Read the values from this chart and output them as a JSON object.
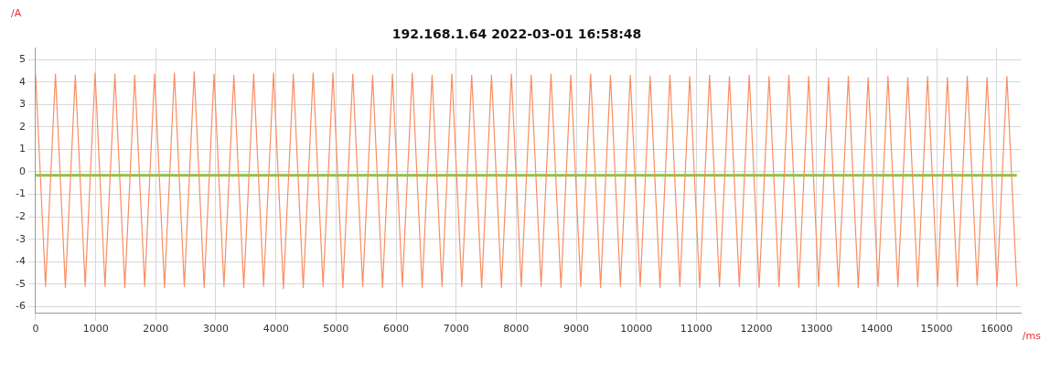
{
  "chart_data": {
    "type": "line",
    "title": "192.168.1.64 2022-03-01 16:58:48",
    "xlabel": "/ms",
    "ylabel": "/A",
    "xlim": [
      0,
      16400
    ],
    "xticks": [
      0,
      1000,
      2000,
      3000,
      4000,
      5000,
      6000,
      7000,
      8000,
      9000,
      10000,
      11000,
      12000,
      13000,
      14000,
      15000,
      16000
    ],
    "ylim": [
      -6.3,
      5.5
    ],
    "yticks": [
      -6,
      -5,
      -4,
      -3,
      -2,
      -1,
      0,
      1,
      2,
      3,
      4,
      5
    ],
    "grid": true,
    "legend": false,
    "marker": "none",
    "line_style": "solid",
    "series": [
      {
        "color": "#f98d62",
        "x": [
          0,
          165,
          330,
          495,
          660,
          825,
          990,
          1155,
          1320,
          1485,
          1650,
          1815,
          1980,
          2145,
          2310,
          2475,
          2640,
          2805,
          2970,
          3135,
          3300,
          3465,
          3630,
          3795,
          3960,
          4125,
          4290,
          4455,
          4620,
          4785,
          4950,
          5115,
          5280,
          5445,
          5610,
          5775,
          5940,
          6105,
          6270,
          6435,
          6600,
          6765,
          6930,
          7095,
          7260,
          7425,
          7590,
          7755,
          7920,
          8085,
          8250,
          8415,
          8580,
          8745,
          8910,
          9075,
          9240,
          9405,
          9570,
          9735,
          9900,
          10065,
          10230,
          10395,
          10560,
          10725,
          10890,
          11055,
          11220,
          11385,
          11550,
          11715,
          11880,
          12045,
          12210,
          12375,
          12540,
          12705,
          12870,
          13035,
          13200,
          13365,
          13530,
          13695,
          13860,
          14025,
          14190,
          14355,
          14520,
          14685,
          14850,
          15015,
          15180,
          15345,
          15510,
          15675,
          15840,
          16005,
          16170,
          16335
        ],
        "values": [
          4.3,
          -5.1,
          4.35,
          -5.15,
          4.3,
          -5.1,
          4.4,
          -5.1,
          4.35,
          -5.15,
          4.3,
          -5.1,
          4.35,
          -5.15,
          4.4,
          -5.1,
          4.45,
          -5.15,
          4.35,
          -5.1,
          4.3,
          -5.15,
          4.35,
          -5.1,
          4.4,
          -5.2,
          4.35,
          -5.15,
          4.4,
          -5.1,
          4.4,
          -5.15,
          4.35,
          -5.1,
          4.3,
          -5.15,
          4.35,
          -5.1,
          4.4,
          -5.15,
          4.3,
          -5.1,
          4.35,
          -5.1,
          4.3,
          -5.15,
          4.3,
          -5.15,
          4.35,
          -5.1,
          4.3,
          -5.1,
          4.35,
          -5.15,
          4.3,
          -5.1,
          4.35,
          -5.15,
          4.3,
          -5.1,
          4.3,
          -5.1,
          4.25,
          -5.15,
          4.3,
          -5.1,
          4.25,
          -5.15,
          4.3,
          -5.1,
          4.25,
          -5.1,
          4.3,
          -5.15,
          4.25,
          -5.1,
          4.3,
          -5.15,
          4.25,
          -5.1,
          4.2,
          -5.1,
          4.25,
          -5.15,
          4.2,
          -5.1,
          4.25,
          -5.1,
          4.2,
          -5.1,
          4.25,
          -5.1,
          4.2,
          -5.1,
          4.25,
          -5.05,
          4.2,
          -5.1,
          4.25,
          -5.1
        ]
      },
      {
        "color": "#8dc63f",
        "x": [
          0,
          16335
        ],
        "values": [
          -0.15,
          -0.15
        ]
      }
    ]
  }
}
